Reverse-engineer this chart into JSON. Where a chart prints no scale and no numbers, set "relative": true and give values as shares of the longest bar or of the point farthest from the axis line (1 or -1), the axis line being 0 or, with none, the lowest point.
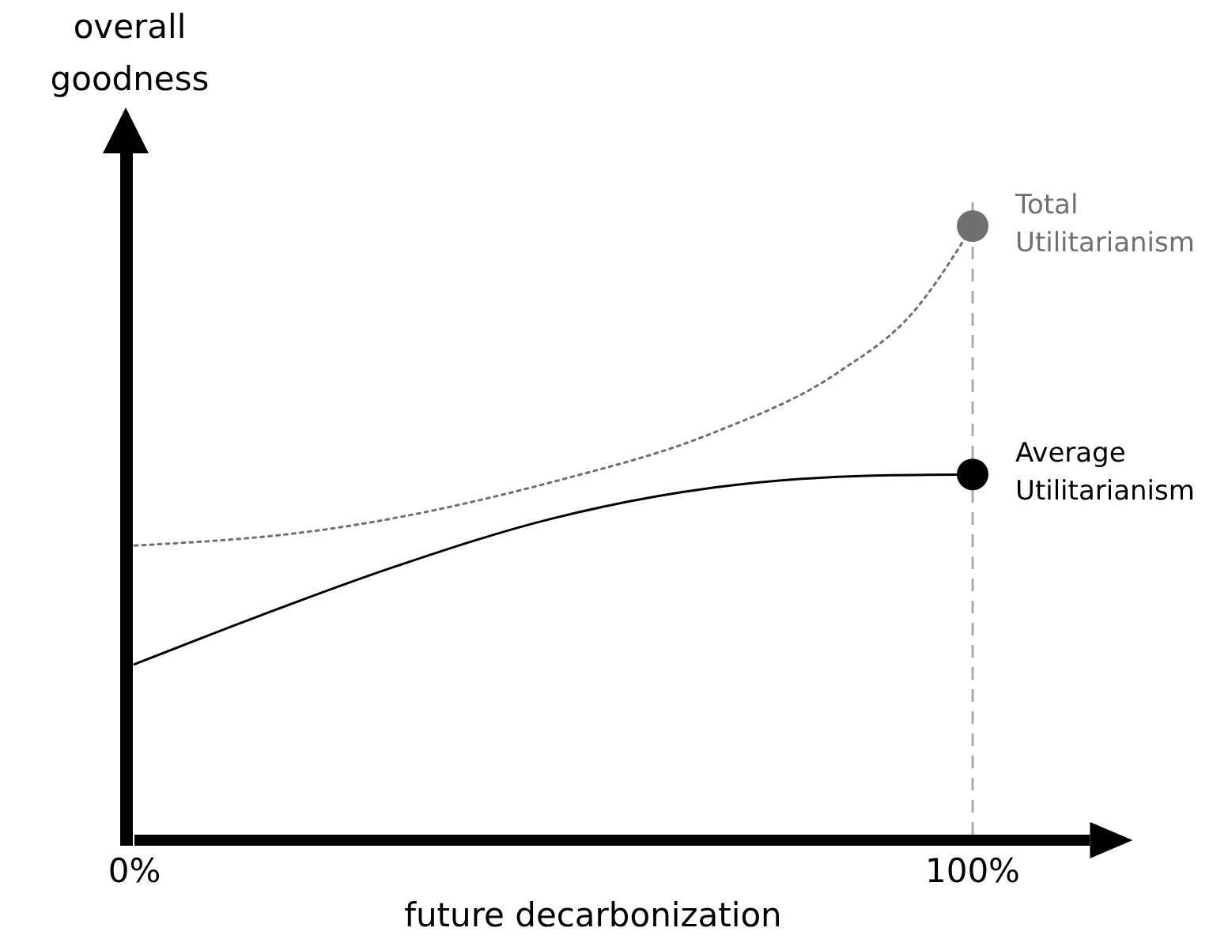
{
  "chart_data": {
    "type": "line",
    "relative": true,
    "xlabel": "future decarbonization",
    "ylabel": "overall goodness",
    "xlim": [
      0,
      114
    ],
    "xticks": [
      {
        "value": 0,
        "label": "0%"
      },
      {
        "value": 100,
        "label": "100%"
      }
    ],
    "marker": "circle",
    "ref_lines": [
      {
        "axis": "x",
        "value": 100,
        "color": "#aaaaaa",
        "line_style": "dashed"
      }
    ],
    "series": [
      {
        "name": "Total Utilitarianism",
        "color": "#707070",
        "line_style": "dotted",
        "marker": "none",
        "x": [
          0,
          22,
          50,
          69,
          84,
          93,
          100
        ],
        "values": [
          0.475,
          0.5,
          0.58,
          0.66,
          0.76,
          0.86,
          1
        ]
      },
      {
        "name": "Average Utilitarianism",
        "color": "#000000",
        "line_style": "solid",
        "marker": "none",
        "x": [
          0,
          15,
          31,
          50,
          69,
          88,
          100
        ],
        "values": [
          0.28,
          0.36,
          0.44,
          0.52,
          0.57,
          0.59,
          0.592
        ]
      },
      {
        "type": "scatter",
        "color": "#707070",
        "x": [
          100
        ],
        "values": [
          1
        ]
      },
      {
        "type": "scatter",
        "color": "#000000",
        "x": [
          100
        ],
        "values": [
          0.592
        ]
      }
    ]
  }
}
